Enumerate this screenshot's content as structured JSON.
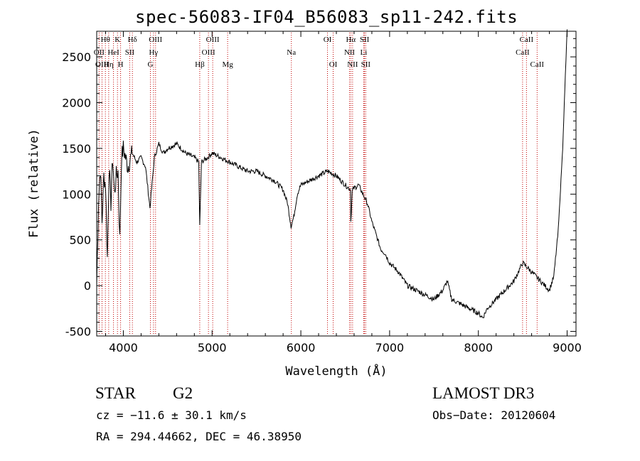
{
  "title": "spec-56083-IF04_B56083_sp11-242.fits",
  "chart_data": {
    "type": "line",
    "title": "spec-56083-IF04_B56083_sp11-242.fits",
    "xlabel": "Wavelength (Å)",
    "ylabel": "Flux (relative)",
    "xlim": [
      3700,
      9100
    ],
    "ylim": [
      -550,
      2780
    ],
    "xticks": [
      4000,
      5000,
      6000,
      7000,
      8000,
      9000
    ],
    "yticks": [
      -500,
      0,
      500,
      1000,
      1500,
      2000,
      2500
    ],
    "grid": false,
    "series": [
      {
        "x": [
          3700,
          3720,
          3740,
          3760,
          3780,
          3800,
          3820,
          3840,
          3860,
          3880,
          3900,
          3920,
          3940,
          3960,
          3980,
          4000,
          4050,
          4100,
          4150,
          4200,
          4250,
          4300,
          4350,
          4400,
          4450,
          4500,
          4600,
          4700,
          4800,
          4850,
          4861,
          4880,
          4950,
          5000,
          5100,
          5200,
          5300,
          5400,
          5500,
          5600,
          5700,
          5800,
          5850,
          5890,
          5920,
          5960,
          6000,
          6100,
          6200,
          6300,
          6400,
          6500,
          6560,
          6563,
          6580,
          6650,
          6700,
          6750,
          6800,
          6850,
          6900,
          6950,
          7000,
          7100,
          7200,
          7300,
          7400,
          7500,
          7600,
          7650,
          7700,
          7800,
          7900,
          8000,
          8050,
          8100,
          8200,
          8300,
          8400,
          8450,
          8500,
          8550,
          8600,
          8650,
          8700,
          8750,
          8800,
          8850,
          8900,
          8950,
          8980,
          9000
        ],
        "y": [
          0,
          900,
          1300,
          700,
          1200,
          1100,
          300,
          1300,
          900,
          1400,
          1000,
          1200,
          1250,
          500,
          1400,
          1500,
          1300,
          1450,
          1350,
          1400,
          1300,
          850,
          1400,
          1550,
          1450,
          1500,
          1550,
          1450,
          1400,
          1350,
          650,
          1350,
          1400,
          1450,
          1400,
          1350,
          1300,
          1250,
          1250,
          1200,
          1150,
          1050,
          900,
          650,
          750,
          1000,
          1100,
          1150,
          1200,
          1250,
          1200,
          1100,
          1050,
          700,
          1050,
          1100,
          1000,
          900,
          700,
          550,
          400,
          350,
          250,
          150,
          0,
          -50,
          -100,
          -150,
          -50,
          50,
          -150,
          -200,
          -250,
          -300,
          -350,
          -250,
          -150,
          -50,
          50,
          150,
          250,
          200,
          150,
          100,
          50,
          0,
          -50,
          100,
          600,
          1500,
          2300,
          2800
        ]
      }
    ],
    "line_ids": {
      "top": [
        {
          "label": "Hθ",
          "x": 3798
        },
        {
          "label": "K",
          "x": 3934
        },
        {
          "label": "Hδ",
          "x": 4102
        },
        {
          "label": "OIII",
          "x": 4363
        },
        {
          "label": "OIII",
          "x": 5007
        },
        {
          "label": "OI",
          "x": 6300
        },
        {
          "label": "Hα",
          "x": 6563
        },
        {
          "label": "SII",
          "x": 6717
        },
        {
          "label": "CaII",
          "x": 8542
        }
      ],
      "mid": [
        {
          "label": "OII",
          "x": 3727
        },
        {
          "label": "HeI",
          "x": 3889
        },
        {
          "label": "SII",
          "x": 4072
        },
        {
          "label": "Hγ",
          "x": 4340
        },
        {
          "label": "OIII",
          "x": 4959
        },
        {
          "label": "Na",
          "x": 5893
        },
        {
          "label": "NII",
          "x": 6548
        },
        {
          "label": "Li",
          "x": 6708
        },
        {
          "label": "CaII",
          "x": 8498
        }
      ],
      "low": [
        {
          "label": "OIII",
          "x": 3760
        },
        {
          "label": "Hη",
          "x": 3835
        },
        {
          "label": "H",
          "x": 3969
        },
        {
          "label": "G",
          "x": 4305
        },
        {
          "label": "Hβ",
          "x": 4861
        },
        {
          "label": "Mg",
          "x": 5175
        },
        {
          "label": "OI",
          "x": 6364
        },
        {
          "label": "NII",
          "x": 6583
        },
        {
          "label": "SII",
          "x": 6731
        },
        {
          "label": "CaII",
          "x": 8662
        }
      ]
    }
  },
  "info": {
    "class": "STAR",
    "subclass": "G2",
    "survey": "LAMOST DR3",
    "cz": "cz = −11.6 ± 30.1 km/s",
    "obs_date": "Obs−Date: 20120604",
    "radec": "RA = 294.44662, DEC =  46.38950"
  }
}
